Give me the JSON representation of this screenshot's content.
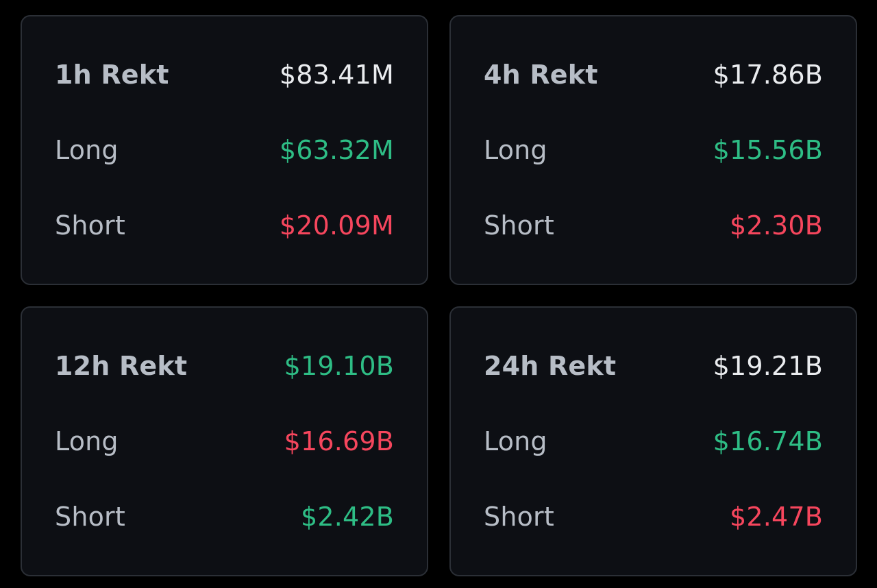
{
  "colors": {
    "background": "#000000",
    "card": "#0d0f14",
    "border": "#2b2f36",
    "label": "#b7bdc6",
    "white": "#eaecef",
    "green": "#2ebd85",
    "red": "#f6465d"
  },
  "cards": [
    {
      "title": "1h Rekt",
      "total": "$83.41M",
      "total_color": "white",
      "long_label": "Long",
      "long": "$63.32M",
      "long_color": "green",
      "short_label": "Short",
      "short": "$20.09M",
      "short_color": "red"
    },
    {
      "title": "4h Rekt",
      "total": "$17.86B",
      "total_color": "white",
      "long_label": "Long",
      "long": "$15.56B",
      "long_color": "green",
      "short_label": "Short",
      "short": "$2.30B",
      "short_color": "red"
    },
    {
      "title": "12h Rekt",
      "total": "$19.10B",
      "total_color": "green",
      "long_label": "Long",
      "long": "$16.69B",
      "long_color": "red",
      "short_label": "Short",
      "short": "$2.42B",
      "short_color": "green"
    },
    {
      "title": "24h Rekt",
      "total": "$19.21B",
      "total_color": "white",
      "long_label": "Long",
      "long": "$16.74B",
      "long_color": "green",
      "short_label": "Short",
      "short": "$2.47B",
      "short_color": "red"
    }
  ]
}
